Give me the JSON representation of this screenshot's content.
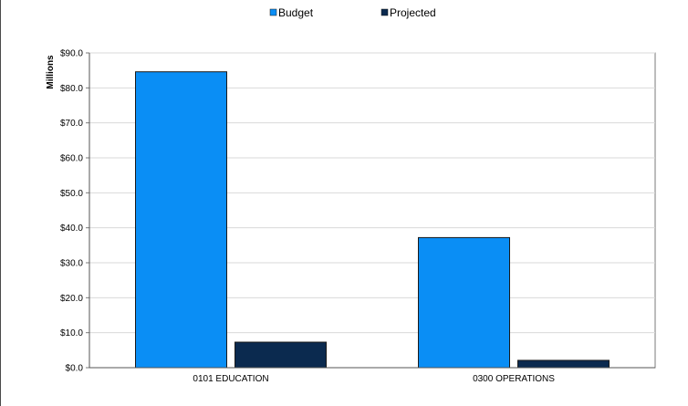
{
  "chart_data": {
    "type": "bar",
    "ylabel": "Millions",
    "ylim": [
      0,
      90
    ],
    "yticks": [
      "$0.0",
      "$10.0",
      "$20.0",
      "$30.0",
      "$40.0",
      "$50.0",
      "$60.0",
      "$70.0",
      "$80.0",
      "$90.0"
    ],
    "categories": [
      "0101 EDUCATION",
      "0300 OPERATIONS"
    ],
    "series": [
      {
        "name": "Budget",
        "values": [
          84.6,
          37.2
        ],
        "color": "#0a8ef5"
      },
      {
        "name": "Projected",
        "values": [
          7.3,
          2.1
        ],
        "color": "#0b2a4f"
      }
    ],
    "legend_position": "top-center",
    "grid": true
  }
}
